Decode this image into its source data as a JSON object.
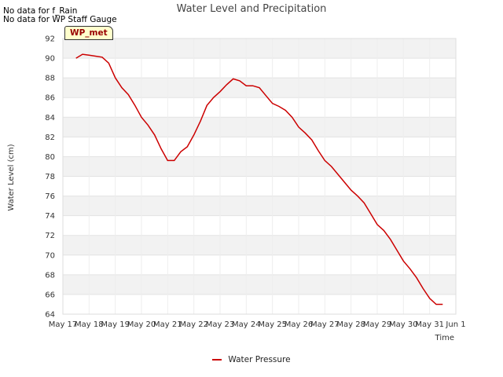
{
  "notes": [
    "No data for f_Rain",
    "No data for WP Staff Gauge"
  ],
  "badge": "WP_met",
  "chart_data": {
    "type": "line",
    "title": "Water Level and Precipitation",
    "xlabel": "Time",
    "ylabel": "Water Level (cm)",
    "ylim": [
      64,
      92
    ],
    "yticks": [
      64,
      66,
      68,
      70,
      72,
      74,
      76,
      78,
      80,
      82,
      84,
      86,
      88,
      90,
      92
    ],
    "xlim": [
      "2024-05-17",
      "2024-06-01"
    ],
    "xticks": [
      "May 17",
      "May 18",
      "May 19",
      "May 20",
      "May 21",
      "May 22",
      "May 23",
      "May 24",
      "May 25",
      "May 26",
      "May 27",
      "May 28",
      "May 29",
      "May 30",
      "May 31",
      "Jun 1"
    ],
    "grid": true,
    "legend_position": "bottom",
    "series": [
      {
        "name": "Water Pressure",
        "color": "#cc0000",
        "x": [
          "2024-05-17T12:00",
          "2024-05-17T18:00",
          "2024-05-18T00:00",
          "2024-05-18T12:00",
          "2024-05-18T18:00",
          "2024-05-19T00:00",
          "2024-05-19T06:00",
          "2024-05-19T12:00",
          "2024-05-19T18:00",
          "2024-05-20T00:00",
          "2024-05-20T06:00",
          "2024-05-20T12:00",
          "2024-05-20T18:00",
          "2024-05-21T00:00",
          "2024-05-21T06:00",
          "2024-05-21T12:00",
          "2024-05-21T18:00",
          "2024-05-22T00:00",
          "2024-05-22T06:00",
          "2024-05-22T12:00",
          "2024-05-22T18:00",
          "2024-05-23T00:00",
          "2024-05-23T06:00",
          "2024-05-23T12:00",
          "2024-05-23T18:00",
          "2024-05-24T00:00",
          "2024-05-24T06:00",
          "2024-05-24T12:00",
          "2024-05-24T18:00",
          "2024-05-25T00:00",
          "2024-05-25T06:00",
          "2024-05-25T12:00",
          "2024-05-25T18:00",
          "2024-05-26T00:00",
          "2024-05-26T06:00",
          "2024-05-26T12:00",
          "2024-05-26T18:00",
          "2024-05-27T00:00",
          "2024-05-27T06:00",
          "2024-05-27T12:00",
          "2024-05-27T18:00",
          "2024-05-28T00:00",
          "2024-05-28T06:00",
          "2024-05-28T12:00",
          "2024-05-28T18:00",
          "2024-05-29T00:00",
          "2024-05-29T06:00",
          "2024-05-29T12:00",
          "2024-05-29T18:00",
          "2024-05-30T00:00",
          "2024-05-30T06:00",
          "2024-05-30T12:00",
          "2024-05-30T18:00",
          "2024-05-31T00:00",
          "2024-05-31T06:00",
          "2024-05-31T12:00"
        ],
        "values": [
          90.0,
          90.4,
          90.3,
          90.1,
          89.5,
          88.0,
          87.0,
          86.3,
          85.2,
          84.0,
          83.2,
          82.2,
          80.8,
          79.6,
          79.6,
          80.5,
          81.0,
          82.2,
          83.6,
          85.2,
          86.0,
          86.6,
          87.3,
          87.9,
          87.7,
          87.2,
          87.2,
          87.0,
          86.2,
          85.4,
          85.1,
          84.7,
          84.0,
          83.0,
          82.4,
          81.7,
          80.6,
          79.6,
          79.0,
          78.2,
          77.4,
          76.6,
          76.0,
          75.3,
          74.2,
          73.1,
          72.5,
          71.6,
          70.5,
          69.4,
          68.6,
          67.7,
          66.6,
          65.6,
          65.0,
          65.0
        ]
      }
    ]
  }
}
